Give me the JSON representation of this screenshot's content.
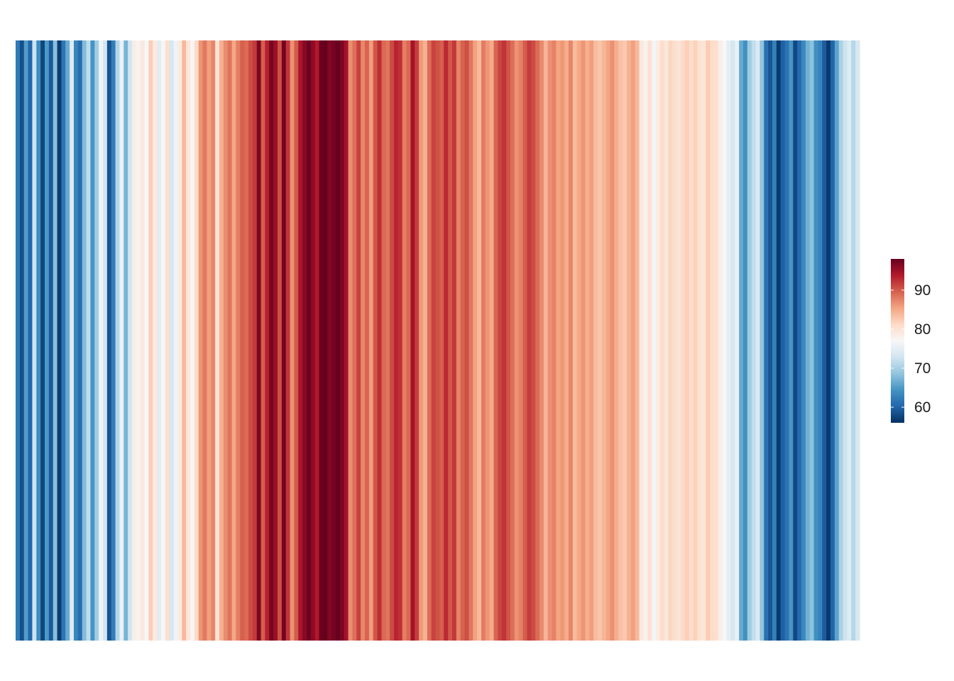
{
  "chart_data": {
    "type": "heatmap",
    "title": "",
    "xlabel": "",
    "ylabel": "",
    "values": [
      62.1,
      58.4,
      65.2,
      60.3,
      72.5,
      63.8,
      57.6,
      64.9,
      59.2,
      68.1,
      56.9,
      61.7,
      66.4,
      74.3,
      63.2,
      60.9,
      67.8,
      71.6,
      64.5,
      69.7,
      76.2,
      73.1,
      58.7,
      62.3,
      70.8,
      75.5,
      67.2,
      72.9,
      78.4,
      77.6,
      79.1,
      76.8,
      82.3,
      78.9,
      74.7,
      77.2,
      80.6,
      73.4,
      76.1,
      78.8,
      83.9,
      79.6,
      77.3,
      81.2,
      86.4,
      88.1,
      85.7,
      87.3,
      79.9,
      84.6,
      86.9,
      88.4,
      85.2,
      87.8,
      89.6,
      88.9,
      90.7,
      91.8,
      96.8,
      89.8,
      93.4,
      97.1,
      95.2,
      90.6,
      97.4,
      92.1,
      86.6,
      89.9,
      94.3,
      96.2,
      97.6,
      95.9,
      93.8,
      97.8,
      98.2,
      96.6,
      97.3,
      98.5,
      96.9,
      94.6,
      86.8,
      88.6,
      91.4,
      87.2,
      89.4,
      85.9,
      90.2,
      92.6,
      89.1,
      88.3,
      90.9,
      93.1,
      92.4,
      87.7,
      89.2,
      94.7,
      91.6,
      86.1,
      84.4,
      88.8,
      91.3,
      90.4,
      89.7,
      92.8,
      90.1,
      91.9,
      87.4,
      89.5,
      90.6,
      88.2,
      85.6,
      83.8,
      87.9,
      86.3,
      84.9,
      89.3,
      91.2,
      92.2,
      90.3,
      88.7,
      86.5,
      87.6,
      89.8,
      91.7,
      90.8,
      88.9,
      87.1,
      84.2,
      86.7,
      87.5,
      85.4,
      86.2,
      84.8,
      87.3,
      83.7,
      85.1,
      86.4,
      84.6,
      85.8,
      83.5,
      82.9,
      84.1,
      85.3,
      86.6,
      84.7,
      83.2,
      82.6,
      84.3,
      85.7,
      83.9,
      79.2,
      77.8,
      80.3,
      76.5,
      78.6,
      80.9,
      79.4,
      81.6,
      80.5,
      79.8,
      81.3,
      82.1,
      80.8,
      81.9,
      80.2,
      79.7,
      82.4,
      81.1,
      80.6,
      78.3,
      76.9,
      74.8,
      73.2,
      75.6,
      66.3,
      64.2,
      69.4,
      71.8,
      73.9,
      68.6,
      61.2,
      58.9,
      62.7,
      56.8,
      59.8,
      61.5,
      64.6,
      57.9,
      60.7,
      63.4,
      66.9,
      68.4,
      64.1,
      62.9,
      59.4,
      56.7,
      60.2,
      65.8,
      70.3,
      72.6,
      74.1,
      70.9,
      73.6
    ],
    "colorbar": {
      "min": 56,
      "max": 98,
      "ticks": [
        "60",
        "70",
        "80",
        "90"
      ],
      "tick_values": [
        60,
        70,
        80,
        90
      ],
      "palette": [
        "#053061",
        "#2166ac",
        "#4393c3",
        "#92c5de",
        "#d1e5f0",
        "#f7f7f7",
        "#fddbc7",
        "#f4a582",
        "#d6604d",
        "#b2182b",
        "#67001f"
      ],
      "placement": "right"
    },
    "grid": false,
    "legend_title": ""
  }
}
